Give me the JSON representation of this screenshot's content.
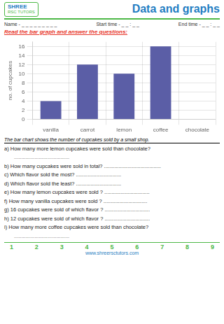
{
  "chart_data": {
    "type": "bar",
    "title": "Data and graphs",
    "categories": [
      "vanilla",
      "carrot",
      "lemon",
      "coffee",
      "chocolate"
    ],
    "values": [
      4,
      12,
      10,
      16,
      0
    ],
    "color": "#5B5EA6",
    "ylabel": "no. of cupcakes",
    "ylim": [
      0,
      17
    ],
    "yticks": [
      0,
      2,
      4,
      6,
      8,
      10,
      12,
      14,
      16
    ],
    "grid": true,
    "annotations": [
      "SHREE",
      "RSC TUTORS",
      "Name -  _ _ _ _ _ _ _ _ _",
      "Start time -  _ _ : _ _",
      "End time -  _ _ : _ _",
      "Read the bar graph and answer the questions:",
      "The bar chart shows the number of cupcakes sold by a small shop.",
      "a)  How many more lemon cupcakes were sold than chocolate?",
      "......................................",
      "b)  How many cupcakes were sold in total? .......................................",
      "c)  Which flavor sold the most? ...............................",
      "d)  Which flavor sold the least? ...............................",
      "e)  How many lemon cupcakes were sold ? ...............................",
      "f)  How many vanilla cupcakes were sold ? ..............................",
      "g)  16 cupcakes were sold of which flavor ? ...............................",
      "h)  12 cupcakes were sold of which flavor ? ...............................",
      "i)  How many more coffee cupcakes were sold than chocolate?",
      "......................................",
      "1",
      "2",
      "3",
      "4",
      "5",
      "6",
      "7",
      "8",
      "9",
      "www.shreersctutors.com"
    ]
  }
}
